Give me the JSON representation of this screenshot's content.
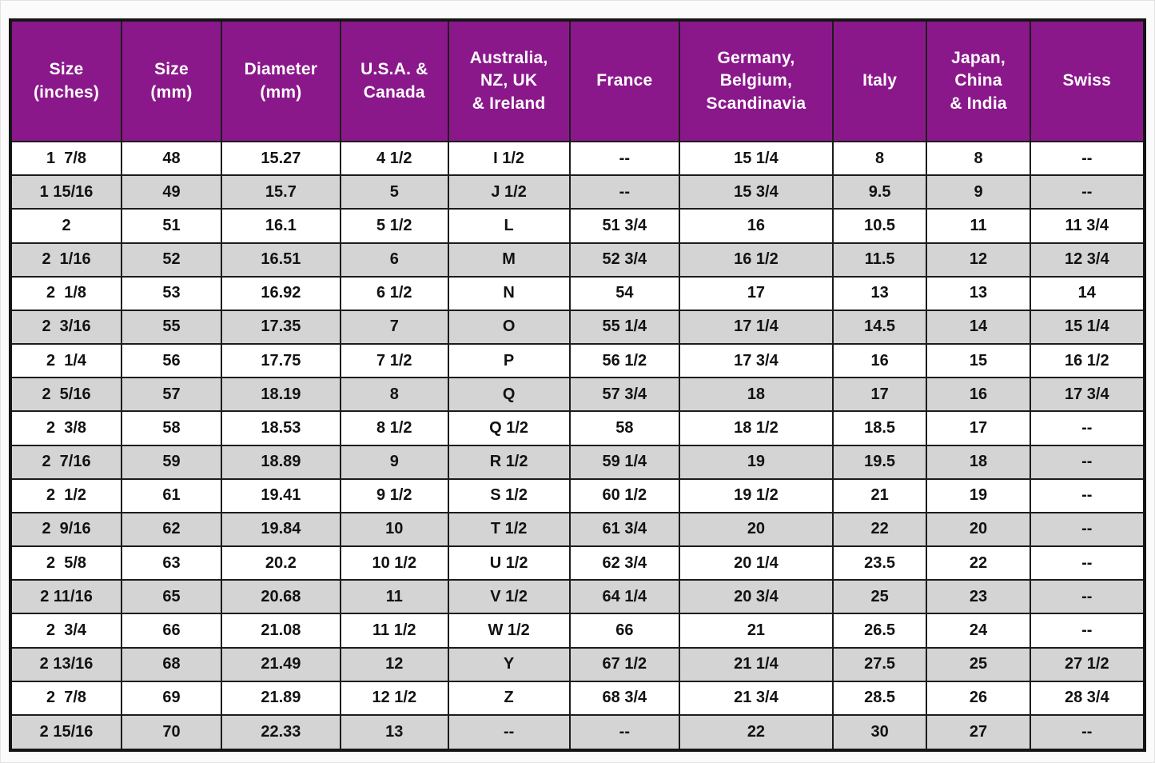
{
  "colors": {
    "header_bg": "#8B188B",
    "header_text": "#FFFFFF",
    "row_bg": "#FFFFFF",
    "row_alt_bg": "#D4D4D4",
    "border": "#1C1C1C"
  },
  "table": {
    "columns": [
      "Size\n(inches)",
      "Size\n(mm)",
      "Diameter\n(mm)",
      "U.S.A. &\nCanada",
      "Australia,\nNZ, UK\n& Ireland",
      "France",
      "Germany,\nBelgium,\nScandinavia",
      "Italy",
      "Japan,\nChina\n& India",
      "Swiss"
    ],
    "rows": [
      [
        "1  7/8",
        "48",
        "15.27",
        "4 1/2",
        "I 1/2",
        "--",
        "15 1/4",
        "8",
        "8",
        "--"
      ],
      [
        "1 15/16",
        "49",
        "15.7",
        "5",
        "J 1/2",
        "--",
        "15 3/4",
        "9.5",
        "9",
        "--"
      ],
      [
        "2",
        "51",
        "16.1",
        "5 1/2",
        "L",
        "51 3/4",
        "16",
        "10.5",
        "11",
        "11 3/4"
      ],
      [
        "2  1/16",
        "52",
        "16.51",
        "6",
        "M",
        "52 3/4",
        "16 1/2",
        "11.5",
        "12",
        "12 3/4"
      ],
      [
        "2  1/8",
        "53",
        "16.92",
        "6 1/2",
        "N",
        "54",
        "17",
        "13",
        "13",
        "14"
      ],
      [
        "2  3/16",
        "55",
        "17.35",
        "7",
        "O",
        "55 1/4",
        "17 1/4",
        "14.5",
        "14",
        "15 1/4"
      ],
      [
        "2  1/4",
        "56",
        "17.75",
        "7 1/2",
        "P",
        "56 1/2",
        "17 3/4",
        "16",
        "15",
        "16 1/2"
      ],
      [
        "2  5/16",
        "57",
        "18.19",
        "8",
        "Q",
        "57 3/4",
        "18",
        "17",
        "16",
        "17 3/4"
      ],
      [
        "2  3/8",
        "58",
        "18.53",
        "8 1/2",
        "Q 1/2",
        "58",
        "18 1/2",
        "18.5",
        "17",
        "--"
      ],
      [
        "2  7/16",
        "59",
        "18.89",
        "9",
        "R 1/2",
        "59 1/4",
        "19",
        "19.5",
        "18",
        "--"
      ],
      [
        "2  1/2",
        "61",
        "19.41",
        "9 1/2",
        "S 1/2",
        "60 1/2",
        "19 1/2",
        "21",
        "19",
        "--"
      ],
      [
        "2  9/16",
        "62",
        "19.84",
        "10",
        "T 1/2",
        "61 3/4",
        "20",
        "22",
        "20",
        "--"
      ],
      [
        "2  5/8",
        "63",
        "20.2",
        "10 1/2",
        "U 1/2",
        "62 3/4",
        "20 1/4",
        "23.5",
        "22",
        "--"
      ],
      [
        "2 11/16",
        "65",
        "20.68",
        "11",
        "V 1/2",
        "64 1/4",
        "20 3/4",
        "25",
        "23",
        "--"
      ],
      [
        "2  3/4",
        "66",
        "21.08",
        "11 1/2",
        "W 1/2",
        "66",
        "21",
        "26.5",
        "24",
        "--"
      ],
      [
        "2 13/16",
        "68",
        "21.49",
        "12",
        "Y",
        "67 1/2",
        "21 1/4",
        "27.5",
        "25",
        "27 1/2"
      ],
      [
        "2  7/8",
        "69",
        "21.89",
        "12 1/2",
        "Z",
        "68 3/4",
        "21 3/4",
        "28.5",
        "26",
        "28 3/4"
      ],
      [
        "2 15/16",
        "70",
        "22.33",
        "13",
        "--",
        "--",
        "22",
        "30",
        "27",
        "--"
      ]
    ]
  }
}
